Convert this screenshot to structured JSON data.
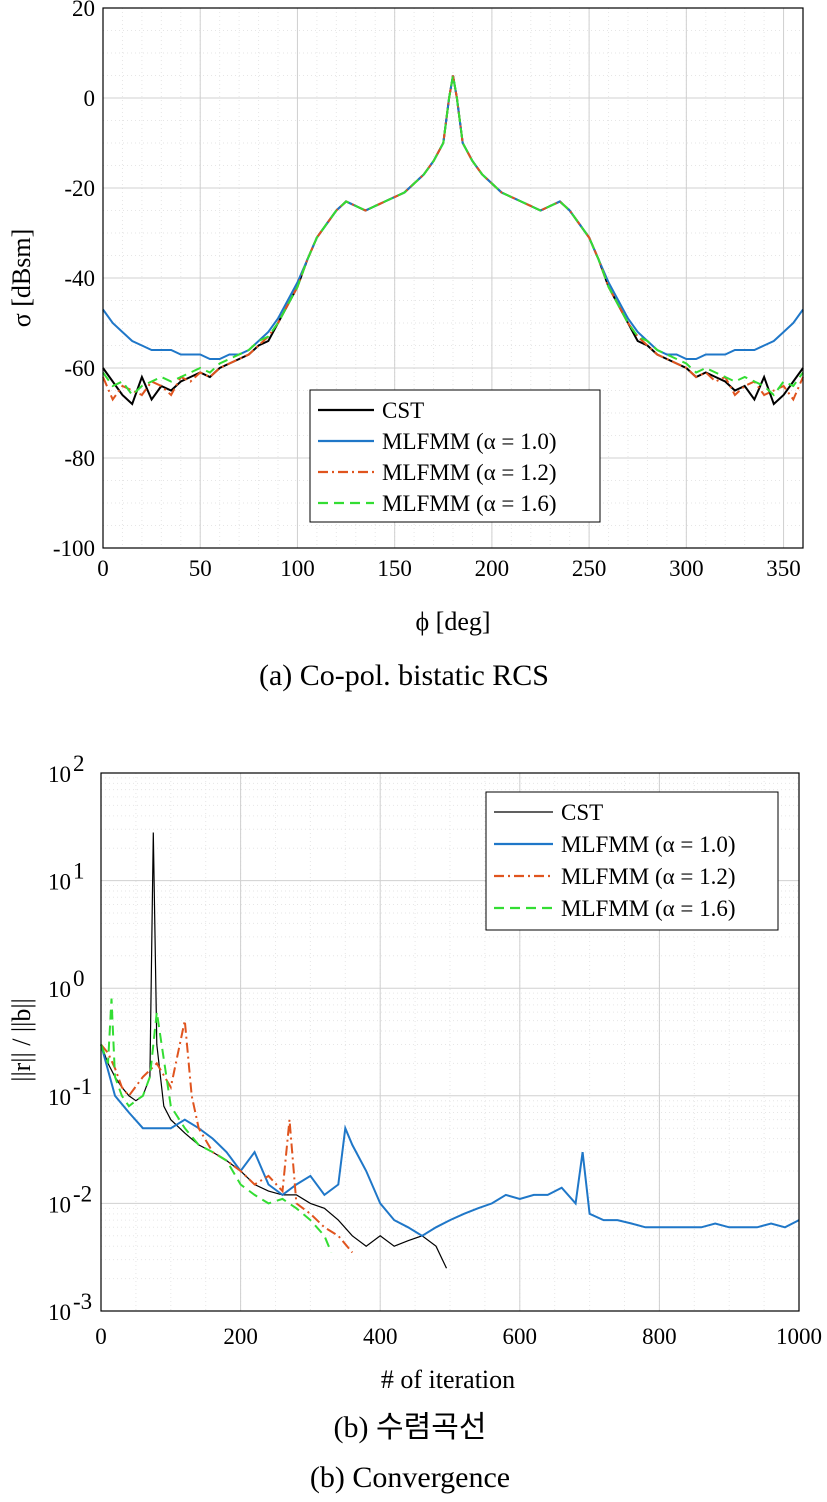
{
  "chart_data": [
    {
      "type": "line",
      "caption": "(a)  Co-pol.  bistatic  RCS",
      "xlabel": "ϕ [deg]",
      "ylabel": "σ [dBsm]",
      "xlim": [
        0,
        360
      ],
      "ylim": [
        -100,
        20
      ],
      "xticks": [
        0,
        50,
        100,
        150,
        200,
        250,
        300,
        350
      ],
      "yticks": [
        20,
        0,
        -20,
        -40,
        -60,
        -80,
        -100
      ],
      "grid": true,
      "legend_position": "bottom-center",
      "x": [
        0,
        5,
        10,
        15,
        20,
        25,
        30,
        35,
        40,
        45,
        50,
        55,
        60,
        65,
        70,
        75,
        80,
        85,
        90,
        95,
        100,
        105,
        110,
        115,
        120,
        125,
        130,
        135,
        140,
        145,
        150,
        155,
        160,
        165,
        170,
        175,
        178,
        180,
        182,
        185,
        190,
        195,
        200,
        205,
        210,
        215,
        220,
        225,
        230,
        235,
        240,
        245,
        250,
        255,
        260,
        265,
        270,
        275,
        280,
        285,
        290,
        295,
        300,
        305,
        310,
        315,
        320,
        325,
        330,
        335,
        340,
        345,
        350,
        355,
        360
      ],
      "series": [
        {
          "name": "CST",
          "color": "#000000",
          "dash": "solid",
          "values": [
            -60,
            -63,
            -66,
            -68,
            -62,
            -67,
            -64,
            -65,
            -63,
            -62,
            -61,
            -62,
            -60,
            -59,
            -58,
            -57,
            -55,
            -54,
            -50,
            -46,
            -42,
            -36,
            -31,
            -28,
            -25,
            -23,
            -24,
            -25,
            -24,
            -23,
            -22,
            -21,
            -19,
            -17,
            -14,
            -10,
            0,
            5,
            0,
            -10,
            -14,
            -17,
            -19,
            -21,
            -22,
            -23,
            -24,
            -25,
            -24,
            -23,
            -25,
            -28,
            -31,
            -36,
            -42,
            -46,
            -50,
            -54,
            -55,
            -57,
            -58,
            -59,
            -60,
            -62,
            -61,
            -62,
            -63,
            -65,
            -64,
            -67,
            -62,
            -68,
            -66,
            -63,
            -60
          ]
        },
        {
          "name": "MLFMM (α = 1.0)",
          "color": "#1f77c8",
          "dash": "solid",
          "values": [
            -47,
            -50,
            -52,
            -54,
            -55,
            -56,
            -56,
            -56,
            -57,
            -57,
            -57,
            -58,
            -58,
            -57,
            -57,
            -56,
            -54,
            -52,
            -49,
            -45,
            -41,
            -36,
            -31,
            -28,
            -25,
            -23,
            -24,
            -25,
            -24,
            -23,
            -22,
            -21,
            -19,
            -17,
            -14,
            -10,
            0,
            5,
            0,
            -10,
            -14,
            -17,
            -19,
            -21,
            -22,
            -23,
            -24,
            -25,
            -24,
            -23,
            -25,
            -28,
            -31,
            -36,
            -41,
            -45,
            -49,
            -52,
            -54,
            -56,
            -57,
            -57,
            -58,
            -58,
            -57,
            -57,
            -57,
            -56,
            -56,
            -56,
            -55,
            -54,
            -52,
            -50,
            -47
          ]
        },
        {
          "name": "MLFMM (α = 1.2)",
          "color": "#e0541e",
          "dash": "dashdot",
          "values": [
            -62,
            -67,
            -64,
            -65,
            -66,
            -63,
            -64,
            -66,
            -62,
            -63,
            -61,
            -62,
            -60,
            -59,
            -58,
            -57,
            -55,
            -53,
            -50,
            -46,
            -42,
            -36,
            -31,
            -28,
            -25,
            -23,
            -24,
            -25,
            -24,
            -23,
            -22,
            -21,
            -19,
            -17,
            -14,
            -10,
            0,
            5,
            0,
            -10,
            -14,
            -17,
            -19,
            -21,
            -22,
            -23,
            -24,
            -25,
            -24,
            -23,
            -25,
            -28,
            -31,
            -36,
            -42,
            -46,
            -50,
            -53,
            -55,
            -57,
            -58,
            -59,
            -60,
            -62,
            -61,
            -63,
            -62,
            -66,
            -64,
            -63,
            -66,
            -65,
            -64,
            -67,
            -62
          ]
        },
        {
          "name": "MLFMM (α = 1.6)",
          "color": "#33dd33",
          "dash": "dashed",
          "values": [
            -61,
            -64,
            -63,
            -66,
            -64,
            -63,
            -62,
            -63,
            -62,
            -61,
            -60,
            -61,
            -59,
            -58,
            -57,
            -56,
            -54,
            -53,
            -50,
            -46,
            -42,
            -36,
            -31,
            -28,
            -25,
            -23,
            -24,
            -25,
            -24,
            -23,
            -22,
            -21,
            -19,
            -17,
            -14,
            -10,
            0,
            5,
            0,
            -10,
            -14,
            -17,
            -19,
            -21,
            -22,
            -23,
            -24,
            -25,
            -24,
            -23,
            -25,
            -28,
            -31,
            -36,
            -42,
            -46,
            -50,
            -53,
            -54,
            -56,
            -57,
            -58,
            -59,
            -61,
            -60,
            -61,
            -62,
            -63,
            -62,
            -63,
            -64,
            -66,
            -63,
            -64,
            -61
          ]
        }
      ]
    },
    {
      "type": "line",
      "caption_ko": "(b)  수렴곡선",
      "caption": "(b)  Convergence",
      "xlabel": "# of iteration",
      "ylabel": "||r|| / ||b||",
      "xlim": [
        0,
        1000
      ],
      "ylim": [
        0.001,
        100
      ],
      "yscale": "log",
      "xticks": [
        0,
        200,
        400,
        600,
        800,
        1000
      ],
      "ytick_exponents": [
        2,
        1,
        0,
        -1,
        -2,
        -3
      ],
      "grid": true,
      "legend_position": "top-right",
      "series": [
        {
          "name": "CST",
          "color": "#000000",
          "dash": "solid",
          "x": [
            0,
            10,
            20,
            30,
            40,
            50,
            60,
            70,
            75,
            80,
            90,
            100,
            120,
            140,
            160,
            180,
            200,
            220,
            240,
            260,
            280,
            300,
            320,
            340,
            360,
            380,
            400,
            420,
            440,
            460,
            480,
            495
          ],
          "values": [
            0.3,
            0.2,
            0.15,
            0.12,
            0.1,
            0.09,
            0.1,
            0.15,
            28,
            0.3,
            0.08,
            0.06,
            0.045,
            0.035,
            0.03,
            0.025,
            0.02,
            0.015,
            0.013,
            0.012,
            0.012,
            0.01,
            0.009,
            0.007,
            0.005,
            0.004,
            0.005,
            0.004,
            0.0045,
            0.005,
            0.004,
            0.0025
          ]
        },
        {
          "name": "MLFMM (α = 1.0)",
          "color": "#1f77c8",
          "dash": "solid",
          "x": [
            0,
            20,
            40,
            60,
            80,
            100,
            120,
            140,
            160,
            180,
            200,
            220,
            240,
            260,
            280,
            300,
            320,
            340,
            350,
            360,
            380,
            400,
            420,
            440,
            460,
            480,
            500,
            520,
            540,
            560,
            580,
            600,
            620,
            640,
            660,
            680,
            690,
            700,
            720,
            740,
            760,
            780,
            800,
            820,
            840,
            860,
            880,
            900,
            920,
            940,
            960,
            980,
            1000
          ],
          "values": [
            0.3,
            0.1,
            0.07,
            0.05,
            0.05,
            0.05,
            0.06,
            0.05,
            0.04,
            0.03,
            0.02,
            0.03,
            0.015,
            0.012,
            0.015,
            0.018,
            0.012,
            0.015,
            0.05,
            0.035,
            0.02,
            0.01,
            0.007,
            0.006,
            0.005,
            0.006,
            0.007,
            0.008,
            0.009,
            0.01,
            0.012,
            0.011,
            0.012,
            0.012,
            0.014,
            0.01,
            0.03,
            0.008,
            0.007,
            0.007,
            0.0065,
            0.006,
            0.006,
            0.006,
            0.006,
            0.006,
            0.0065,
            0.006,
            0.006,
            0.006,
            0.0065,
            0.006,
            0.007
          ]
        },
        {
          "name": "MLFMM (α = 1.2)",
          "color": "#e0541e",
          "dash": "dashdot",
          "x": [
            0,
            10,
            20,
            30,
            40,
            60,
            80,
            100,
            120,
            130,
            140,
            160,
            180,
            200,
            220,
            240,
            260,
            270,
            280,
            300,
            320,
            340,
            360
          ],
          "values": [
            0.3,
            0.25,
            0.18,
            0.12,
            0.1,
            0.15,
            0.2,
            0.12,
            0.5,
            0.1,
            0.05,
            0.03,
            0.025,
            0.02,
            0.015,
            0.018,
            0.013,
            0.06,
            0.01,
            0.008,
            0.006,
            0.005,
            0.0035
          ]
        },
        {
          "name": "MLFMM (α = 1.6)",
          "color": "#33dd33",
          "dash": "dashed",
          "x": [
            0,
            10,
            15,
            20,
            30,
            40,
            50,
            60,
            70,
            80,
            100,
            120,
            140,
            160,
            180,
            200,
            220,
            240,
            260,
            280,
            300,
            320,
            330
          ],
          "values": [
            0.3,
            0.2,
            0.8,
            0.15,
            0.1,
            0.08,
            0.09,
            0.1,
            0.15,
            0.6,
            0.08,
            0.05,
            0.035,
            0.03,
            0.025,
            0.015,
            0.012,
            0.01,
            0.011,
            0.009,
            0.007,
            0.005,
            0.0035
          ]
        }
      ]
    }
  ]
}
